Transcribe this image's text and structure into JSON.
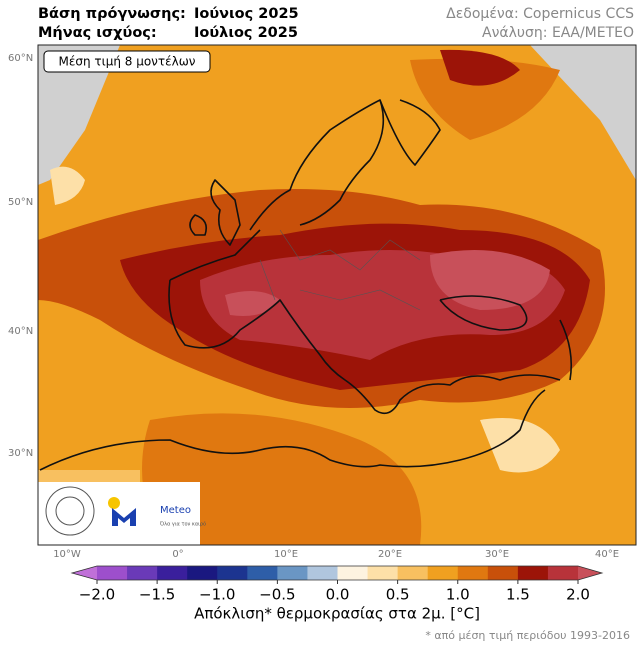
{
  "header": {
    "base_label": "Βάση πρόγνωσης:",
    "base_value": "Ιούνιος 2025",
    "valid_label": "Μήνας ισχύος:",
    "valid_value": "Ιούλιος 2025",
    "source": "Δεδομένα: Copernicus CCS",
    "analysis": "Ανάλυση: ΕΑΑ/ΜΕΤΕΟ"
  },
  "map": {
    "badge": "Μέση τιμή 8 μοντέλων",
    "lat_labels": [
      "60°N",
      "50°N",
      "40°N",
      "30°N"
    ],
    "lon_labels": [
      "10°W",
      "0°",
      "10°E",
      "20°E",
      "30°E",
      "40°E"
    ]
  },
  "logo": {
    "name": "Meteo",
    "slogan": "Όλα για τον καιρό"
  },
  "colorbar": {
    "lim": [
      -2,
      2
    ],
    "ticks": [
      {
        "value": -2,
        "label": "−2.0"
      },
      {
        "value": -1.5,
        "label": "−1.5"
      },
      {
        "value": -1,
        "label": "−1.0"
      },
      {
        "value": -0.5,
        "label": "−0.5"
      },
      {
        "value": 0,
        "label": "0.0"
      },
      {
        "value": 0.5,
        "label": "0.5"
      },
      {
        "value": 1,
        "label": "1.0"
      },
      {
        "value": 1.5,
        "label": "1.5"
      },
      {
        "value": 2,
        "label": "2.0"
      }
    ],
    "colors": [
      "#9d4fcc",
      "#6a3ab8",
      "#3a1f9c",
      "#1a1880",
      "#1c3490",
      "#2e5ea8",
      "#6a96c4",
      "#b0c6de",
      "#fdf3e0",
      "#fde0a8",
      "#f8c060",
      "#f0a020",
      "#e07810",
      "#c8500a",
      "#9c1408",
      "#b8333a"
    ],
    "under_color": "#c070d8",
    "over_color": "#c8505a",
    "label": "Απόκλιση* θερμοκρασίας στα 2μ. [°C]",
    "footnote": "* από μέση τιμή περιόδου 1993-2016"
  }
}
